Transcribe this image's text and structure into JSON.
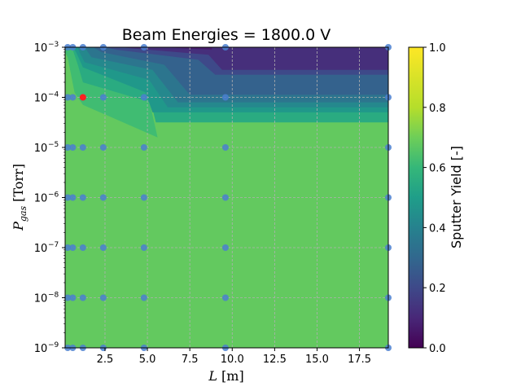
{
  "chart_data": {
    "type": "contour",
    "title": "Beam Energies = 1800.0 V",
    "xlabel": "L [m]",
    "xlabel_var": "L",
    "xlabel_unit": "[m]",
    "ylabel": "P_gas [Torr]",
    "ylabel_var": "P",
    "ylabel_sub": "gas",
    "ylabel_unit": "[Torr]",
    "xlim": [
      0.15,
      19.2
    ],
    "ylim_log10": [
      -9,
      -3
    ],
    "y_scale": "log",
    "grid": true,
    "x_ticks": [
      2.5,
      5.0,
      7.5,
      10.0,
      12.5,
      15.0,
      17.5
    ],
    "x_tick_labels": [
      "2.5",
      "5.0",
      "7.5",
      "10.0",
      "12.5",
      "15.0",
      "17.5"
    ],
    "y_ticks_exp": [
      -9,
      -8,
      -7,
      -6,
      -5,
      -4,
      -3
    ],
    "y_tick_labels": [
      "10",
      "10",
      "10",
      "10",
      "10",
      "10",
      "10"
    ],
    "y_tick_exponents": [
      "−9",
      "−8",
      "−7",
      "−6",
      "−5",
      "−4",
      "−3"
    ],
    "colorbar": {
      "label": "Sputter Yield [-]",
      "colormap": "viridis",
      "range": [
        0.0,
        1.0
      ],
      "ticks": [
        0.0,
        0.2,
        0.4,
        0.6,
        0.8,
        1.0
      ],
      "tick_labels": [
        "0.0",
        "0.2",
        "0.4",
        "0.6",
        "0.8",
        "1.0"
      ]
    },
    "base_level": 0.68,
    "contour_regions": [
      {
        "level": 0.62,
        "boundary": [
          [
            0.15,
            -3
          ],
          [
            19.2,
            -3
          ],
          [
            19.2,
            -4.2
          ],
          [
            5.2,
            -4.2
          ],
          [
            5.6,
            -4.8
          ],
          [
            1.2,
            -4.15
          ],
          [
            0.7,
            -3.9
          ],
          [
            0.3,
            -3.2
          ],
          [
            0.15,
            -3.1
          ]
        ]
      },
      {
        "level": 0.55,
        "boundary": [
          [
            0.35,
            -3
          ],
          [
            19.2,
            -3
          ],
          [
            19.2,
            -4.5
          ],
          [
            5.5,
            -4.5
          ],
          [
            5.2,
            -4.1
          ],
          [
            1.2,
            -3.7
          ],
          [
            0.9,
            -3.35
          ],
          [
            0.6,
            -3.05
          ]
        ]
      },
      {
        "level": 0.48,
        "boundary": [
          [
            0.6,
            -3
          ],
          [
            19.2,
            -3
          ],
          [
            19.2,
            -4.3
          ],
          [
            5.3,
            -4.3
          ],
          [
            4.9,
            -3.9
          ],
          [
            1.2,
            -3.4
          ],
          [
            0.8,
            -3.1
          ]
        ]
      },
      {
        "level": 0.42,
        "boundary": [
          [
            0.9,
            -3
          ],
          [
            19.2,
            -3
          ],
          [
            19.2,
            -4.2
          ],
          [
            6.2,
            -4.2
          ],
          [
            5.1,
            -3.65
          ],
          [
            1.3,
            -3.3
          ],
          [
            1.0,
            -3.1
          ]
        ]
      },
      {
        "level": 0.35,
        "boundary": [
          [
            1.3,
            -3
          ],
          [
            19.2,
            -3
          ],
          [
            19.2,
            -4.1
          ],
          [
            6.8,
            -4.1
          ],
          [
            5.3,
            -3.45
          ],
          [
            1.7,
            -3.2
          ]
        ]
      },
      {
        "level": 0.28,
        "boundary": [
          [
            1.8,
            -3
          ],
          [
            19.2,
            -3
          ],
          [
            19.2,
            -3.95
          ],
          [
            7.5,
            -3.95
          ],
          [
            6.0,
            -3.35
          ],
          [
            2.3,
            -3.1
          ]
        ]
      },
      {
        "level": 0.2,
        "boundary": [
          [
            2.5,
            -3
          ],
          [
            19.2,
            -3
          ],
          [
            19.2,
            -3.55
          ],
          [
            9.0,
            -3.55
          ],
          [
            8.0,
            -3.25
          ],
          [
            3.2,
            -3.05
          ]
        ]
      },
      {
        "level": 0.12,
        "boundary": [
          [
            3.5,
            -3
          ],
          [
            19.2,
            -3
          ],
          [
            19.2,
            -3.45
          ],
          [
            9.4,
            -3.45
          ],
          [
            8.6,
            -3.15
          ],
          [
            4.0,
            -3.02
          ]
        ]
      },
      {
        "level": 0.07,
        "boundary": [
          [
            4.5,
            -3
          ],
          [
            19.2,
            -3
          ],
          [
            19.2,
            -3.0
          ],
          [
            8.8,
            -3.0
          ],
          [
            8.8,
            -3.05
          ],
          [
            6.0,
            -3.0
          ]
        ]
      }
    ],
    "sample_points_x": [
      0.3,
      0.6,
      1.2,
      2.4,
      4.8,
      9.6,
      19.2
    ],
    "sample_points_y_exp": [
      -9,
      -8,
      -7,
      -6,
      -5,
      -4,
      -3
    ],
    "sample_point_color": "#4a7fd0",
    "highlight_point": {
      "x": 1.2,
      "y_exp": -4,
      "color": "#ff2020"
    },
    "grid_color": "#b0b0b0"
  }
}
